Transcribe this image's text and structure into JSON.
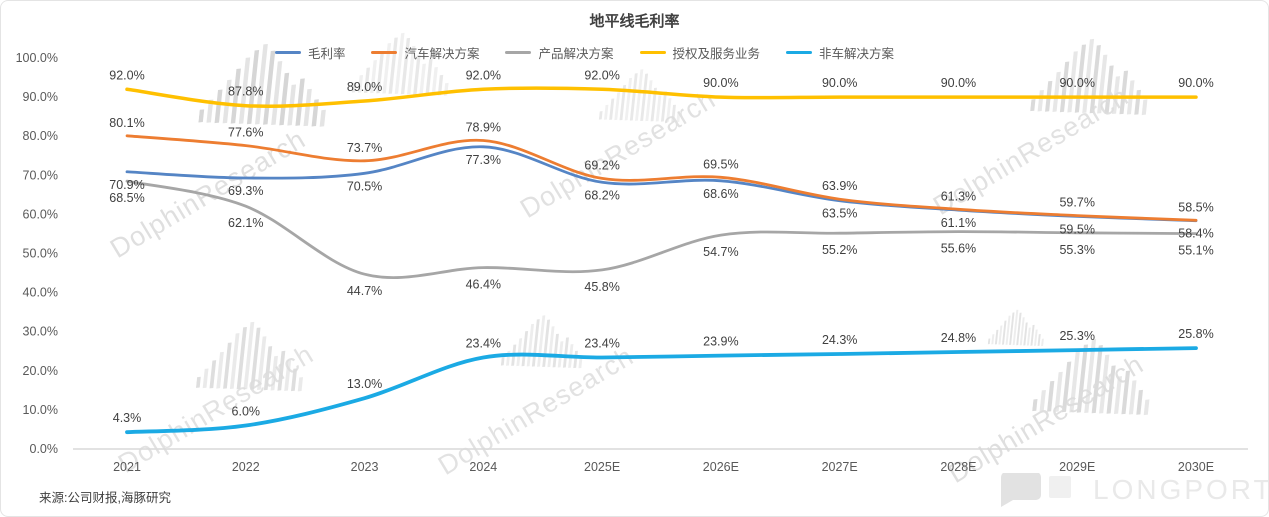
{
  "chart_data": {
    "type": "line",
    "title": "地平线毛利率",
    "categories": [
      "2021",
      "2022",
      "2023",
      "2024",
      "2025E",
      "2026E",
      "2027E",
      "2028E",
      "2029E",
      "2030E"
    ],
    "y_axis": {
      "ticks": [
        "100.0%",
        "90.0%",
        "80.0%",
        "70.0%",
        "60.0%",
        "50.0%",
        "40.0%",
        "30.0%",
        "20.0%",
        "10.0%",
        "0.0%"
      ],
      "min": 0,
      "max": 100
    },
    "grid": false,
    "legend_position": "top",
    "series": [
      {
        "name": "毛利率",
        "color": "#5585C5",
        "label_side": "below",
        "label_dy": 17,
        "values": [
          70.9,
          69.3,
          70.5,
          77.3,
          68.2,
          68.6,
          63.5,
          61.1,
          59.5,
          58.4
        ]
      },
      {
        "name": "汽车解决方案",
        "color": "#ED7D31",
        "label_side": "above",
        "label_dy": -9,
        "values": [
          80.1,
          77.6,
          73.7,
          78.9,
          69.2,
          69.5,
          63.9,
          61.3,
          59.7,
          58.5
        ]
      },
      {
        "name": "产品解决方案",
        "color": "#A6A6A6",
        "label_side": "below",
        "label_dy": 21,
        "values": [
          68.5,
          62.1,
          44.7,
          46.4,
          45.8,
          54.7,
          55.2,
          55.6,
          55.3,
          55.1
        ]
      },
      {
        "name": "授权及服务业务",
        "color": "#FFC000",
        "label_side": "above",
        "label_dy": -10,
        "values": [
          92.0,
          87.8,
          89.0,
          92.0,
          92.0,
          90.0,
          90.0,
          90.0,
          90.0,
          90.0
        ]
      },
      {
        "name": "非车解决方案",
        "color": "#1BAAE4",
        "label_side": "above",
        "label_dy": -10,
        "values": [
          4.3,
          6.0,
          13.0,
          23.4,
          23.4,
          23.9,
          24.3,
          24.8,
          25.3,
          25.8
        ]
      }
    ],
    "label_color": "#404040",
    "axis_label_color": "#595959"
  },
  "watermark": {
    "text": "DolphinResearch"
  },
  "footer": {
    "source": "来源:公司财报,海豚研究",
    "brand": "LONGPORT"
  }
}
